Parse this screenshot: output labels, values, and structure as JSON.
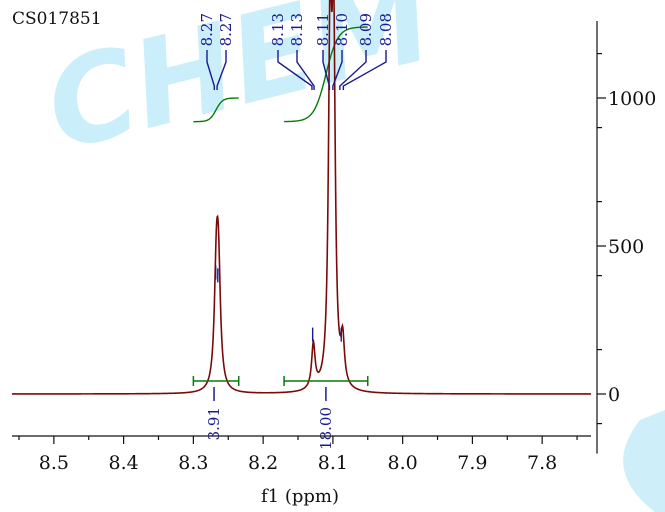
{
  "sample_id": "CS017851",
  "watermark": "CHEM",
  "colors": {
    "spectrum": "#7a0a0a",
    "integral": "#0a7a0a",
    "peak_label": "#1a1a8c",
    "axis": "#111111",
    "watermark": "#9ee0f5"
  },
  "chart_data": {
    "type": "line",
    "xlabel": "f1 (ppm)",
    "xlim": [
      8.56,
      7.73
    ],
    "x_reversed": true,
    "x_ticks": [
      8.5,
      8.4,
      8.3,
      8.2,
      8.1,
      8.0,
      7.9,
      7.8
    ],
    "x_tick_labels": [
      "8.5",
      "8.4",
      "8.3",
      "8.2",
      "8.1",
      "8.0",
      "7.9",
      "7.8"
    ],
    "ylim": [
      -100,
      1260
    ],
    "y_ticks": [
      0,
      500,
      1000
    ],
    "y_tick_labels": [
      "0",
      "500",
      "1000"
    ],
    "y_axis_side": "right",
    "peaks": [
      {
        "ppm": 8.267,
        "height": 360,
        "width": 0.0035
      },
      {
        "ppm": 8.264,
        "height": 350,
        "width": 0.0035
      },
      {
        "ppm": 8.128,
        "height": 150,
        "width": 0.003
      },
      {
        "ppm": 8.104,
        "height": 1150,
        "width": 0.0028
      },
      {
        "ppm": 8.099,
        "height": 1150,
        "width": 0.0028
      },
      {
        "ppm": 8.086,
        "height": 150,
        "width": 0.003
      }
    ],
    "peak_labels": [
      {
        "text": "8.27",
        "ppm": 8.27
      },
      {
        "text": "8.27",
        "ppm": 8.266
      },
      {
        "text": "8.13",
        "ppm": 8.13
      },
      {
        "text": "8.13",
        "ppm": 8.127
      },
      {
        "text": "8.11",
        "ppm": 8.105
      },
      {
        "text": "8.10",
        "ppm": 8.1
      },
      {
        "text": "8.09",
        "ppm": 8.09
      },
      {
        "text": "8.08",
        "ppm": 8.085
      }
    ],
    "integrals": [
      {
        "from": 8.3,
        "to": 8.235,
        "value": "3.91",
        "curve_y": [
          920,
          1000
        ]
      },
      {
        "from": 8.17,
        "to": 8.05,
        "value": "18.00",
        "curve_y": [
          920,
          1240
        ]
      }
    ]
  }
}
